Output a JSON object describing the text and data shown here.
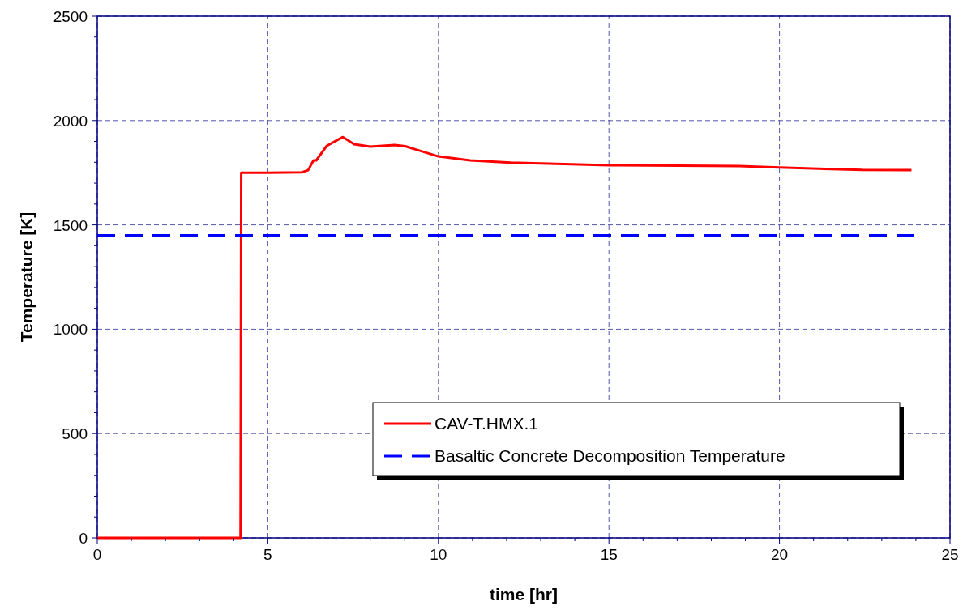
{
  "chart_data": {
    "type": "line",
    "xlabel": "time [hr]",
    "ylabel": "Temperature [K]",
    "xlim": [
      0,
      25
    ],
    "ylim": [
      0,
      2500
    ],
    "xticks": [
      0,
      {
        "value": 1,
        "label": null
      },
      {
        "value": 2,
        "label": null
      },
      {
        "value": 3,
        "label": null
      },
      {
        "value": 4,
        "label": null
      },
      5,
      {
        "value": 6,
        "label": null
      },
      {
        "value": 7,
        "label": null
      },
      {
        "value": 8,
        "label": null
      },
      {
        "value": 9,
        "label": null
      },
      10,
      {
        "value": 11,
        "label": null
      },
      {
        "value": 12,
        "label": null
      },
      {
        "value": 13,
        "label": null
      },
      {
        "value": 14,
        "label": null
      },
      15,
      {
        "value": 16,
        "label": null
      },
      {
        "value": 17,
        "label": null
      },
      {
        "value": 18,
        "label": null
      },
      {
        "value": 19,
        "label": null
      },
      20,
      {
        "value": 21,
        "label": null
      },
      {
        "value": 22,
        "label": null
      },
      {
        "value": 23,
        "label": null
      },
      {
        "value": 24,
        "label": null
      },
      25
    ],
    "yticks": [
      0,
      {
        "value": 100,
        "label": null
      },
      {
        "value": 200,
        "label": null
      },
      {
        "value": 300,
        "label": null
      },
      {
        "value": 400,
        "label": null
      },
      500,
      {
        "value": 600,
        "label": null
      },
      {
        "value": 700,
        "label": null
      },
      {
        "value": 800,
        "label": null
      },
      {
        "value": 900,
        "label": null
      },
      1000,
      {
        "value": 1100,
        "label": null
      },
      {
        "value": 1200,
        "label": null
      },
      {
        "value": 1300,
        "label": null
      },
      {
        "value": 1400,
        "label": null
      },
      1500,
      {
        "value": 1600,
        "label": null
      },
      {
        "value": 1700,
        "label": null
      },
      {
        "value": 1800,
        "label": null
      },
      {
        "value": 1900,
        "label": null
      },
      2000,
      {
        "value": 2100,
        "label": null
      },
      {
        "value": 2200,
        "label": null
      },
      {
        "value": 2300,
        "label": null
      },
      {
        "value": 2400,
        "label": null
      },
      2500
    ],
    "grid": true,
    "legend": "bottom right",
    "marker": "none",
    "series": [
      {
        "name": "CAV-T.HMX.1",
        "color": "#ff0000",
        "line_style": "solid",
        "x": [
          0,
          4.2,
          4.22,
          5,
          6,
          6.18,
          6.34,
          6.42,
          6.73,
          7.2,
          7.53,
          8.0,
          8.72,
          9.03,
          10.0,
          10.93,
          12.12,
          15.0,
          18.82,
          20.0,
          22.43,
          23.87
        ],
        "values": [
          0,
          0,
          1750,
          1750,
          1752,
          1762,
          1809,
          1809,
          1879,
          1921,
          1887,
          1875,
          1883,
          1877,
          1828,
          1809,
          1798,
          1786,
          1782,
          1775,
          1763,
          1762
        ]
      },
      {
        "name": "Basaltic Concrete Decomposition Temperature",
        "color": "#0000ff",
        "line_style": "dashed",
        "x": [
          0,
          24
        ],
        "values": [
          1450,
          1450
        ]
      }
    ]
  }
}
